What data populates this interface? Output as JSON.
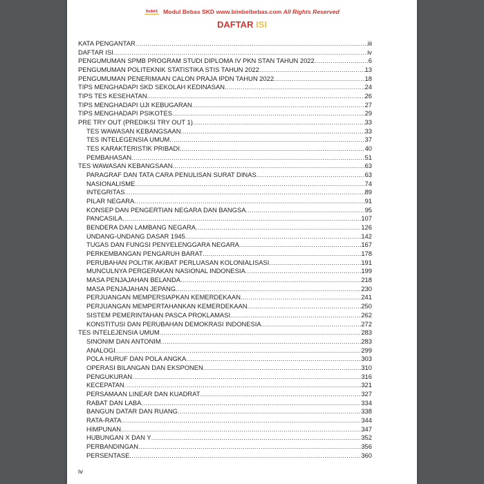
{
  "header": {
    "logo": "BeBAS",
    "text": "Modul Bebas SKD www.bimbelbebas.com",
    "italic": "All Rights Reserved"
  },
  "title": {
    "part1": "DAFTAR",
    "part2": "ISI"
  },
  "colors": {
    "red": "#d2352f",
    "yellow": "#f0c24a",
    "background": "#54575a"
  },
  "toc": [
    {
      "t": "KATA PENGANTAR",
      "p": "iii",
      "l": 1
    },
    {
      "t": "DAFTAR ISI",
      "p": "iv",
      "l": 1
    },
    {
      "t": "PENGUMUMAN SPMB PROGRAM STUDI DIPLOMA IV PKN STAN TAHUN 2022",
      "p": "6",
      "l": 1
    },
    {
      "t": "PENGUMUMAN POLITEKNIK STATISTIKA STIS TAHUN 2022",
      "p": "13",
      "l": 1
    },
    {
      "t": "PENGUMUMAN PENERIMAAN CALON PRAJA IPDN TAHUN 2022",
      "p": "18",
      "l": 1
    },
    {
      "t": "TIPS MENGHADAPI SKD SEKOLAH KEDINASAN",
      "p": "24",
      "l": 1
    },
    {
      "t": "TIPS TES KESEHATAN",
      "p": "26",
      "l": 1
    },
    {
      "t": "TIPS MENGHADAPI UJI KEBUGARAN",
      "p": "27",
      "l": 1
    },
    {
      "t": "TIPS MENGHADAPI PSIKOTES",
      "p": "29",
      "l": 1
    },
    {
      "t": "PRE TRY OUT (PREDIKSI TRY OUT 1)",
      "p": "33",
      "l": 1
    },
    {
      "t": "TES WAWASAN KEBANGSAAN",
      "p": "33",
      "l": 2
    },
    {
      "t": "TES INTELEGENSIA UMUM",
      "p": "37",
      "l": 2
    },
    {
      "t": "TES KARAKTERISTIK PRIBADI",
      "p": "40",
      "l": 2
    },
    {
      "t": "PEMBAHASAN",
      "p": "51",
      "l": 2
    },
    {
      "t": "TES WAWASAN KEBANGSAAN",
      "p": "63",
      "l": 1
    },
    {
      "t": "PARAGRAF DAN TATA CARA PENULISAN SURAT DINAS",
      "p": "63",
      "l": 2
    },
    {
      "t": "NASIONALISME",
      "p": "74",
      "l": 2
    },
    {
      "t": "INTEGRITAS",
      "p": "89",
      "l": 2
    },
    {
      "t": "PILAR NEGARA",
      "p": "91",
      "l": 2
    },
    {
      "t": "KONSEP DAN PENGERTIAN NEGARA DAN BANGSA",
      "p": "95",
      "l": 2
    },
    {
      "t": "PANCASILA",
      "p": "107",
      "l": 2
    },
    {
      "t": "BENDERA DAN LAMBANG NEGARA",
      "p": "126",
      "l": 2
    },
    {
      "t": "UNDANG-UNDANG DASAR 1945",
      "p": "142",
      "l": 2
    },
    {
      "t": "TUGAS DAN FUNGSI PENYELENGGARA NEGARA",
      "p": "167",
      "l": 2
    },
    {
      "t": "PERKEMBANGAN PENGARUH BARAT",
      "p": "178",
      "l": 2
    },
    {
      "t": "PERUBAHAN POLITIK AKIBAT PERLUASAN KOLONIALISASI",
      "p": "191",
      "l": 2
    },
    {
      "t": "MUNCULNYA PERGERAKAN NASIONAL INDONESIA",
      "p": "199",
      "l": 2
    },
    {
      "t": "MASA PENJAJAHAN BELANDA",
      "p": "218",
      "l": 2
    },
    {
      "t": "MASA PENJAJAHAN JEPANG",
      "p": "230",
      "l": 2
    },
    {
      "t": "PERJUANGAN MEMPERSIAPKAN KEMERDEKAAN",
      "p": "241",
      "l": 2
    },
    {
      "t": "PERJUANGAN MEMPERTAHANKAN KEMERDEKAAN",
      "p": "250",
      "l": 2
    },
    {
      "t": "SISTEM PEMERINTAHAN PASCA PROKLAMASI",
      "p": "262",
      "l": 2
    },
    {
      "t": "KONSTITUSI DAN PERUBAHAN DEMOKRASI INDONESIA",
      "p": "272",
      "l": 2
    },
    {
      "t": "TES INTELEJENSIA UMUM",
      "p": "283",
      "l": 1
    },
    {
      "t": "SINONIM DAN ANTONIM",
      "p": "283",
      "l": 2
    },
    {
      "t": "ANALOGI",
      "p": "299",
      "l": 2
    },
    {
      "t": "POLA HURUF DAN POLA ANGKA",
      "p": "303",
      "l": 2
    },
    {
      "t": "OPERASI BILANGAN DAN EKSPONEN",
      "p": "310",
      "l": 2
    },
    {
      "t": "PENGUKURAN",
      "p": "316",
      "l": 2
    },
    {
      "t": "KECEPATAN",
      "p": "321",
      "l": 2
    },
    {
      "t": "PERSAMAAN LINEAR DAN KUADRAT",
      "p": "327",
      "l": 2
    },
    {
      "t": "RABAT DAN LABA",
      "p": "334",
      "l": 2
    },
    {
      "t": "BANGUN DATAR DAN RUANG",
      "p": "338",
      "l": 2
    },
    {
      "t": "RATA-RATA",
      "p": "344",
      "l": 2
    },
    {
      "t": "HIMPUNAN",
      "p": "347",
      "l": 2
    },
    {
      "t": "HUBUNGAN X DAN Y",
      "p": "352",
      "l": 2
    },
    {
      "t": "PERBANDINGAN",
      "p": "356",
      "l": 2
    },
    {
      "t": "PERSENTASE",
      "p": "360",
      "l": 2
    }
  ],
  "page_number": "iv"
}
